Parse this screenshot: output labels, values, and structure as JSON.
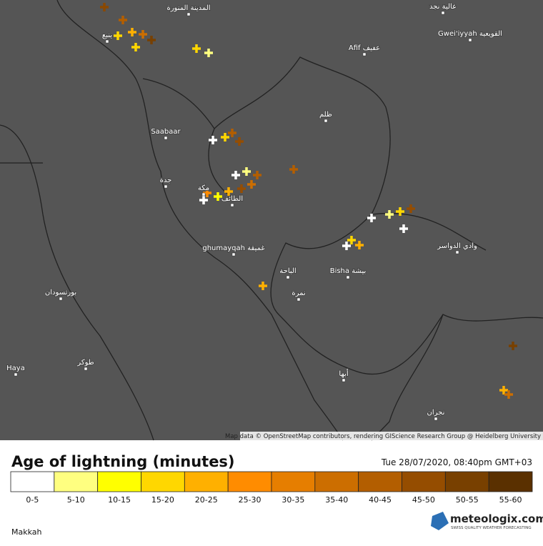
{
  "map": {
    "labels": [
      "المدينة المنورة",
      "Afif عفيف",
      "Gwei'iyyah القويعية",
      "عالية نجد",
      "ظلم",
      "Saabaar",
      "جدة",
      "مكة",
      "الطائف",
      "ghumayqah غميقة",
      "الباحة",
      "Bisha بيشة",
      "وادي الدواسر",
      "نمرة",
      "بورتسودان",
      "طوكر",
      "Haya",
      "أبها",
      "نجران",
      "ينبع"
    ],
    "attribution": "Map data © OpenStreetMap contributors, rendering GIScience Research Group @ Heidelberg University"
  },
  "legend": {
    "title": "Age of lightning (minutes)",
    "timestamp": "Tue 28/07/2020, 08:40pm GMT+03",
    "bins": [
      {
        "label": "0-5",
        "color": "#ffffff"
      },
      {
        "label": "5-10",
        "color": "#ffff80"
      },
      {
        "label": "10-15",
        "color": "#ffff00"
      },
      {
        "label": "15-20",
        "color": "#ffd700"
      },
      {
        "label": "20-25",
        "color": "#ffb000"
      },
      {
        "label": "25-30",
        "color": "#ff8c00"
      },
      {
        "label": "30-35",
        "color": "#e67e00"
      },
      {
        "label": "35-40",
        "color": "#cc6e00"
      },
      {
        "label": "40-45",
        "color": "#b35e00"
      },
      {
        "label": "45-50",
        "color": "#954d00"
      },
      {
        "label": "50-55",
        "color": "#784000"
      },
      {
        "label": "55-60",
        "color": "#5a3000"
      }
    ]
  },
  "footer": {
    "location": "Makkah",
    "brand": "meteologix.com",
    "tagline": "SWISS QUALITY WEATHER FORECASTING"
  }
}
